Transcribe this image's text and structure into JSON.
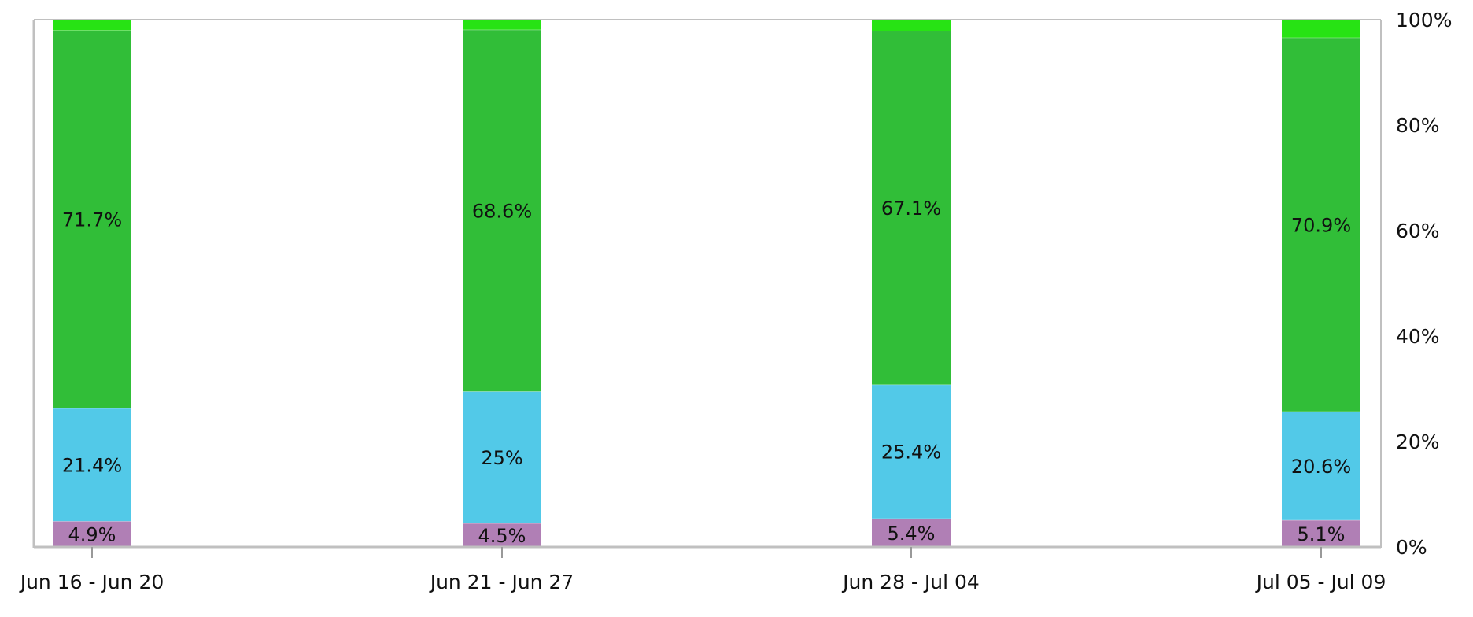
{
  "chart_data": {
    "type": "bar",
    "stacked": true,
    "normalized": true,
    "categories": [
      "Jun 16 - Jun 20",
      "Jun 21 - Jun 27",
      "Jun 28 - Jul 04",
      "Jul 05 - Jul 09"
    ],
    "series": [
      {
        "color": "#b07fb5",
        "values": [
          4.9,
          4.5,
          5.4,
          5.1
        ],
        "labels": [
          "4.9%",
          "4.5%",
          "5.4%",
          "5.1%"
        ]
      },
      {
        "color": "#52c9e8",
        "values": [
          21.4,
          25,
          25.4,
          20.6
        ],
        "labels": [
          "21.4%",
          "25%",
          "25.4%",
          "20.6%"
        ]
      },
      {
        "color": "#31be38",
        "values": [
          71.7,
          68.6,
          67.1,
          70.9
        ],
        "labels": [
          "71.7%",
          "68.6%",
          "67.1%",
          "70.9%"
        ]
      },
      {
        "color": "#27e314",
        "values": [
          2.0,
          1.9,
          2.1,
          3.4
        ],
        "labels": [
          "",
          "",
          "",
          ""
        ]
      }
    ],
    "y_axis": {
      "position": "right",
      "range": [
        0,
        100
      ],
      "ticks": [
        0,
        20,
        40,
        60,
        80,
        100
      ],
      "tick_labels": [
        "0%",
        "20%",
        "40%",
        "60%",
        "80%",
        "100%"
      ]
    },
    "title": "",
    "xlabel": "",
    "ylabel": "",
    "grid": false,
    "legend": "none",
    "frame_color": "#c0c0c0"
  }
}
